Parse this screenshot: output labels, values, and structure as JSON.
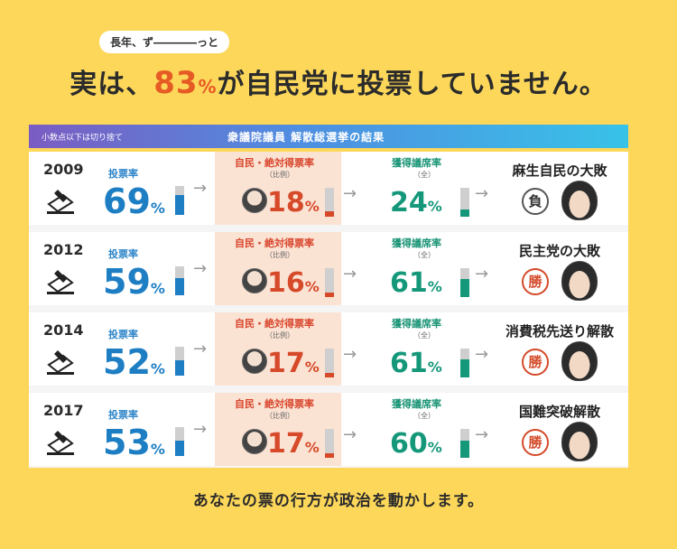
{
  "header": {
    "subtitle": "長年、ず――――っと",
    "headline_pre": "実は、",
    "headline_pct": "83",
    "headline_pct_unit": "%",
    "headline_post": "が自民党に投票していません。"
  },
  "banner": {
    "note": "小数点以下は切り捨て",
    "title": "衆議院議員 解散総選挙の結果"
  },
  "labels": {
    "turnout": "投票率",
    "abs": "自民・絶対得票率",
    "abs_sub": "（比例）",
    "seat": "獲得議席率",
    "seat_sub": "（全）",
    "pct": "%"
  },
  "rows": [
    {
      "year": "2009",
      "turnout": 69,
      "abs": 18,
      "seat": 24,
      "result": "麻生自民の大敗",
      "stamp": "負",
      "stamp_type": "lose"
    },
    {
      "year": "2012",
      "turnout": 59,
      "abs": 16,
      "seat": 61,
      "result": "民主党の大敗",
      "stamp": "勝",
      "stamp_type": "win"
    },
    {
      "year": "2014",
      "turnout": 52,
      "abs": 17,
      "seat": 61,
      "result": "消費税先送り解散",
      "stamp": "勝",
      "stamp_type": "win"
    },
    {
      "year": "2017",
      "turnout": 53,
      "abs": 17,
      "seat": 60,
      "result": "国難突破解散",
      "stamp": "勝",
      "stamp_type": "win"
    }
  ],
  "footer": "あなたの票の行方が政治を動かします。",
  "colors": {
    "background": "#fcd75a",
    "turnout": "#1d7ec3",
    "abs": "#d64a2a",
    "seat": "#15977a",
    "abs_cell": "#fbe3d4"
  }
}
